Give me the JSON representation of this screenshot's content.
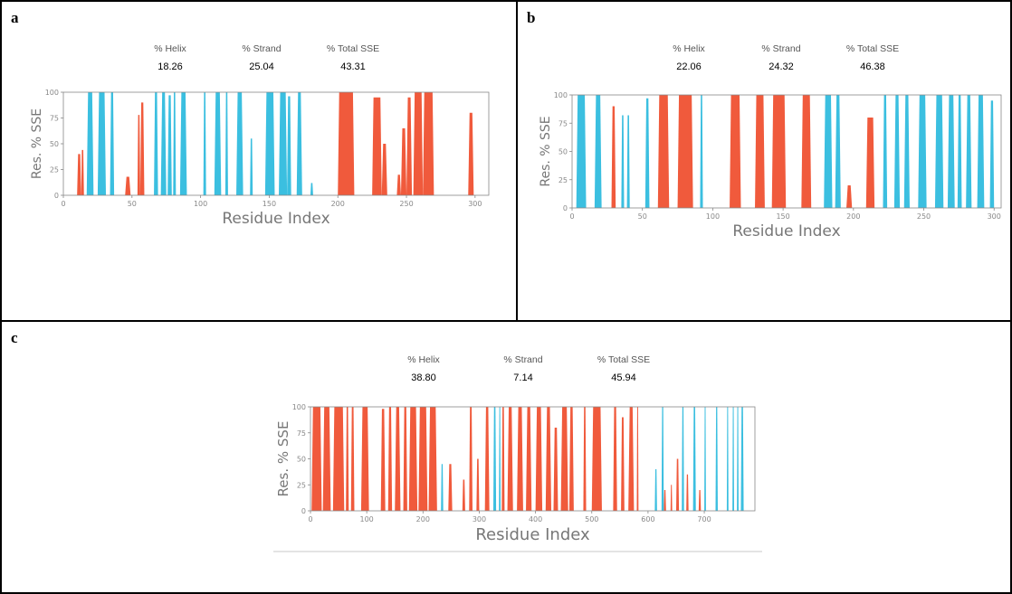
{
  "colors": {
    "helix": "#f05a3c",
    "strand": "#3bbfe0",
    "frame": "#888888",
    "text": "#777777"
  },
  "panels": [
    {
      "letter": "a",
      "stats": [
        {
          "label": "% Helix",
          "value": "18.26"
        },
        {
          "label": "% Strand",
          "value": "25.04"
        },
        {
          "label": "% Total SSE",
          "value": "43.31"
        }
      ]
    },
    {
      "letter": "b",
      "stats": [
        {
          "label": "% Helix",
          "value": "22.06"
        },
        {
          "label": "% Strand",
          "value": "24.32"
        },
        {
          "label": "% Total SSE",
          "value": "46.38"
        }
      ]
    },
    {
      "letter": "c",
      "stats": [
        {
          "label": "% Helix",
          "value": "38.80"
        },
        {
          "label": "% Strand",
          "value": "7.14"
        },
        {
          "label": "% Total SSE",
          "value": "45.94"
        }
      ]
    }
  ],
  "chart_data": [
    {
      "type": "area",
      "panel": "a",
      "xlabel": "Residue Index",
      "ylabel": "Res. % SSE",
      "xlim": [
        0,
        310
      ],
      "ylim": [
        0,
        100
      ],
      "xticks": [
        0,
        50,
        100,
        150,
        200,
        250,
        300
      ],
      "yticks": [
        0,
        25,
        50,
        75,
        100
      ],
      "grid": false,
      "series": [
        {
          "sse": "helix",
          "segments": [
            [
              10,
              13,
              40
            ],
            [
              13,
              15,
              44
            ],
            [
              45,
              49,
              18
            ],
            [
              54,
              56,
              78
            ],
            [
              56,
              59,
              90
            ],
            [
              200,
              212,
              100
            ],
            [
              225,
              232,
              95
            ],
            [
              232,
              236,
              50
            ],
            [
              243,
              246,
              20
            ],
            [
              246,
              250,
              65
            ],
            [
              250,
              254,
              95
            ],
            [
              255,
              262,
              100
            ],
            [
              262,
              270,
              100
            ],
            [
              295,
              299,
              80
            ]
          ]
        },
        {
          "sse": "strand",
          "segments": [
            [
              17,
              22,
              100
            ],
            [
              25,
              31,
              100
            ],
            [
              34,
              37,
              100
            ],
            [
              66,
              69,
              100
            ],
            [
              71,
              75,
              100
            ],
            [
              76,
              79,
              97
            ],
            [
              80,
              82,
              100
            ],
            [
              85,
              90,
              100
            ],
            [
              102,
              104,
              100
            ],
            [
              110,
              115,
              100
            ],
            [
              118,
              120,
              100
            ],
            [
              126,
              131,
              100
            ],
            [
              136,
              138,
              55
            ],
            [
              147,
              154,
              100
            ],
            [
              157,
              163,
              100
            ],
            [
              163,
              166,
              96
            ],
            [
              170,
              174,
              100
            ],
            [
              180,
              182,
              12
            ]
          ]
        }
      ]
    },
    {
      "type": "area",
      "panel": "b",
      "xlabel": "Residue Index",
      "ylabel": "Res. % SSE",
      "xlim": [
        0,
        305
      ],
      "ylim": [
        0,
        100
      ],
      "xticks": [
        0,
        50,
        100,
        150,
        200,
        250,
        300
      ],
      "yticks": [
        0,
        25,
        50,
        75,
        100
      ],
      "grid": false,
      "series": [
        {
          "sse": "helix",
          "segments": [
            [
              28,
              31,
              90
            ],
            [
              61,
              69,
              100
            ],
            [
              75,
              86,
              100
            ],
            [
              112,
              120,
              100
            ],
            [
              130,
              137,
              100
            ],
            [
              142,
              152,
              100
            ],
            [
              163,
              170,
              100
            ],
            [
              195,
              199,
              20
            ],
            [
              209,
              215,
              80
            ]
          ]
        },
        {
          "sse": "strand",
          "segments": [
            [
              3,
              10,
              100
            ],
            [
              16,
              21,
              100
            ],
            [
              35,
              37,
              82
            ],
            [
              39,
              41,
              82
            ],
            [
              52,
              55,
              97
            ],
            [
              91,
              93,
              100
            ],
            [
              179,
              185,
              100
            ],
            [
              187,
              191,
              100
            ],
            [
              221,
              224,
              100
            ],
            [
              229,
              233,
              100
            ],
            [
              236,
              240,
              100
            ],
            [
              246,
              252,
              100
            ],
            [
              258,
              264,
              100
            ],
            [
              267,
              272,
              100
            ],
            [
              274,
              277,
              100
            ],
            [
              280,
              284,
              100
            ],
            [
              288,
              293,
              100
            ],
            [
              297,
              300,
              95
            ]
          ]
        }
      ]
    },
    {
      "type": "area",
      "panel": "c",
      "xlabel": "Residue Index",
      "ylabel": "Res. % SSE",
      "xlim": [
        0,
        790
      ],
      "ylim": [
        0,
        100
      ],
      "xticks": [
        0,
        100,
        200,
        300,
        400,
        500,
        600,
        700
      ],
      "yticks": [
        0,
        25,
        50,
        75,
        100
      ],
      "grid": false,
      "series": [
        {
          "sse": "helix",
          "segments": [
            [
              2,
              20,
              100
            ],
            [
              22,
              36,
              100
            ],
            [
              40,
              60,
              100
            ],
            [
              63,
              68,
              100
            ],
            [
              72,
              78,
              100
            ],
            [
              90,
              104,
              100
            ],
            [
              125,
              133,
              98
            ],
            [
              138,
              145,
              100
            ],
            [
              150,
              160,
              100
            ],
            [
              165,
              172,
              100
            ],
            [
              175,
              190,
              100
            ],
            [
              192,
              208,
              100
            ],
            [
              210,
              225,
              100
            ],
            [
              245,
              252,
              45
            ],
            [
              270,
              275,
              30
            ],
            [
              282,
              288,
              100
            ],
            [
              295,
              300,
              50
            ],
            [
              310,
              318,
              100
            ],
            [
              340,
              345,
              100
            ],
            [
              350,
              360,
              100
            ],
            [
              367,
              378,
              100
            ],
            [
              383,
              393,
              100
            ],
            [
              400,
              412,
              100
            ],
            [
              418,
              428,
              100
            ],
            [
              432,
              440,
              80
            ],
            [
              445,
              458,
              100
            ],
            [
              460,
              468,
              100
            ],
            [
              485,
              490,
              100
            ],
            [
              500,
              518,
              100
            ],
            [
              538,
              545,
              100
            ],
            [
              552,
              558,
              90
            ],
            [
              565,
              575,
              100
            ],
            [
              580,
              583,
              100
            ],
            [
              628,
              632,
              20
            ],
            [
              640,
              643,
              25
            ],
            [
              650,
              655,
              50
            ],
            [
              668,
              672,
              35
            ],
            [
              690,
              694,
              20
            ]
          ]
        },
        {
          "sse": "strand",
          "segments": [
            [
              232,
              236,
              45
            ],
            [
              325,
              330,
              100
            ],
            [
              335,
              338,
              100
            ],
            [
              612,
              616,
              40
            ],
            [
              624,
              628,
              100
            ],
            [
              660,
              664,
              100
            ],
            [
              680,
              685,
              100
            ],
            [
              700,
              703,
              100
            ],
            [
              720,
              724,
              100
            ],
            [
              740,
              743,
              100
            ],
            [
              750,
              753,
              100
            ],
            [
              758,
              761,
              100
            ],
            [
              765,
              770,
              100
            ]
          ]
        }
      ]
    }
  ]
}
